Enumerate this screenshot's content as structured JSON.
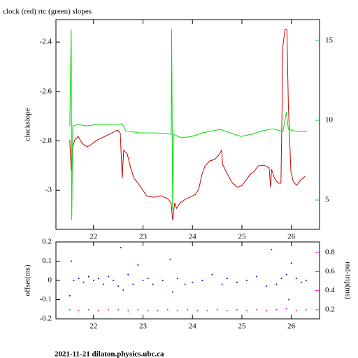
{
  "title": "clock (red) rtc (green) slopes",
  "footer": "2021-11-21  dilaton.physics.ubc.ca",
  "chart_data": [
    {
      "type": "line",
      "ylabel": "clockslope",
      "xlim": [
        21.24,
        26.57
      ],
      "xticks": [
        22,
        23,
        24,
        25,
        26
      ],
      "ylim": [
        -3.158,
        -2.309
      ],
      "yticks": [
        -3,
        -2.8,
        -2.6,
        -2.4
      ],
      "y2lim": [
        3.16,
        16.32
      ],
      "y2ticks": [
        5,
        10,
        15
      ],
      "series": [
        {
          "name": "clock",
          "color": "#cc0000",
          "x": [
            21.52,
            21.55,
            21.58,
            21.62,
            21.69,
            21.77,
            21.87,
            21.94,
            22.08,
            22.23,
            22.37,
            22.48,
            22.54,
            22.58,
            22.61,
            22.68,
            22.75,
            22.82,
            22.9,
            23.0,
            23.07,
            23.22,
            23.36,
            23.5,
            23.57,
            23.6,
            23.64,
            23.68,
            23.75,
            23.85,
            23.95,
            24.06,
            24.13,
            24.19,
            24.25,
            24.35,
            24.45,
            24.53,
            24.59,
            24.61,
            24.7,
            24.81,
            24.91,
            25.0,
            25.08,
            25.16,
            25.25,
            25.33,
            25.45,
            25.55,
            25.58,
            25.6,
            25.66,
            25.73,
            25.79,
            25.83,
            25.87,
            25.91,
            25.94,
            25.99,
            26.04,
            26.11,
            26.18,
            26.28
          ],
          "values": [
            -2.796,
            -2.923,
            -2.824,
            -2.796,
            -2.782,
            -2.81,
            -2.824,
            -2.816,
            -2.796,
            -2.782,
            -2.768,
            -2.756,
            -2.768,
            -2.952,
            -2.838,
            -2.852,
            -2.909,
            -2.952,
            -2.971,
            -3.0,
            -3.022,
            -3.028,
            -3.022,
            -3.034,
            -3.051,
            -3.121,
            -3.051,
            -3.073,
            -3.051,
            -3.037,
            -3.028,
            -3.017,
            -2.994,
            -2.937,
            -2.904,
            -2.881,
            -2.875,
            -2.858,
            -2.838,
            -2.895,
            -2.932,
            -2.971,
            -2.988,
            -2.98,
            -2.96,
            -2.937,
            -2.923,
            -2.901,
            -2.898,
            -2.909,
            -2.988,
            -2.915,
            -2.952,
            -2.971,
            -2.971,
            -2.414,
            -2.349,
            -2.349,
            -2.655,
            -2.923,
            -2.966,
            -2.98,
            -2.96,
            -2.943
          ]
        },
        {
          "name": "rtc",
          "color": "#00dd00",
          "axis": "y2",
          "x": [
            21.52,
            21.55,
            21.56,
            21.58,
            21.69,
            21.87,
            22.08,
            22.37,
            22.58,
            22.65,
            22.93,
            23.22,
            23.5,
            23.57,
            23.58,
            23.6,
            23.62,
            23.78,
            23.99,
            24.2,
            24.56,
            24.77,
            24.98,
            25.19,
            25.41,
            25.62,
            25.83,
            25.9,
            25.94,
            26.11,
            26.32
          ],
          "values": [
            9.65,
            15.7,
            3.73,
            9.65,
            9.74,
            9.65,
            9.74,
            9.74,
            9.78,
            9.34,
            9.21,
            9.21,
            9.17,
            9.12,
            15.7,
            4.39,
            9.12,
            8.9,
            8.99,
            9.21,
            9.43,
            9.21,
            8.99,
            9.12,
            9.34,
            9.47,
            9.3,
            10.53,
            9.43,
            9.3,
            9.3
          ]
        }
      ]
    },
    {
      "type": "scatter",
      "ylabel": "offset(ms)",
      "y2label": "rnd-trip(ms)",
      "xlim": [
        21.24,
        26.57
      ],
      "xticks": [
        22,
        23,
        24,
        25,
        26
      ],
      "ylim": [
        -0.2,
        0.2
      ],
      "yticks": [
        -0.2,
        -0.1,
        0,
        0.1,
        0.2
      ],
      "y2lim": [
        0.105,
        0.91
      ],
      "y2ticks": [
        0.2,
        0.4,
        0.6,
        0.8
      ],
      "series": [
        {
          "name": "offset",
          "color": "#0000cc",
          "x": [
            21.52,
            21.55,
            21.6,
            21.7,
            21.8,
            21.9,
            22.0,
            22.1,
            22.2,
            22.3,
            22.4,
            22.5,
            22.55,
            22.6,
            22.7,
            22.8,
            22.9,
            23.0,
            23.1,
            23.2,
            23.4,
            23.55,
            23.6,
            23.7,
            23.85,
            24.0,
            24.2,
            24.4,
            24.6,
            24.7,
            24.9,
            25.1,
            25.3,
            25.5,
            25.6,
            25.7,
            25.8,
            25.9,
            25.95,
            26.0,
            26.1,
            26.2,
            26.3
          ],
          "values": [
            -0.08,
            0.1,
            0.0,
            0.01,
            -0.01,
            0.02,
            0.0,
            0.01,
            -0.02,
            0.02,
            0.0,
            -0.03,
            0.17,
            -0.05,
            0.03,
            -0.02,
            0.08,
            0.0,
            0.01,
            -0.02,
            0.0,
            0.11,
            -0.06,
            0.01,
            -0.02,
            -0.01,
            0.0,
            0.03,
            -0.02,
            0.01,
            -0.01,
            0.0,
            0.02,
            -0.03,
            0.16,
            -0.02,
            0.01,
            0.03,
            -0.1,
            0.09,
            0.01,
            -0.01,
            0.0
          ]
        },
        {
          "name": "rnd-trip",
          "color": "#ee00ee",
          "axis": "y2",
          "x": [
            21.52,
            21.7,
            21.9,
            22.1,
            22.3,
            22.5,
            22.7,
            22.9,
            23.1,
            23.3,
            23.5,
            23.7,
            23.9,
            24.1,
            24.3,
            24.5,
            24.7,
            24.9,
            25.1,
            25.3,
            25.5,
            25.7,
            25.9,
            26.1,
            26.3
          ],
          "values": [
            0.2,
            0.19,
            0.2,
            0.19,
            0.2,
            0.2,
            0.19,
            0.2,
            0.19,
            0.19,
            0.2,
            0.19,
            0.2,
            0.19,
            0.19,
            0.2,
            0.19,
            0.2,
            0.19,
            0.2,
            0.19,
            0.2,
            0.21,
            0.19,
            0.2
          ]
        }
      ]
    }
  ]
}
